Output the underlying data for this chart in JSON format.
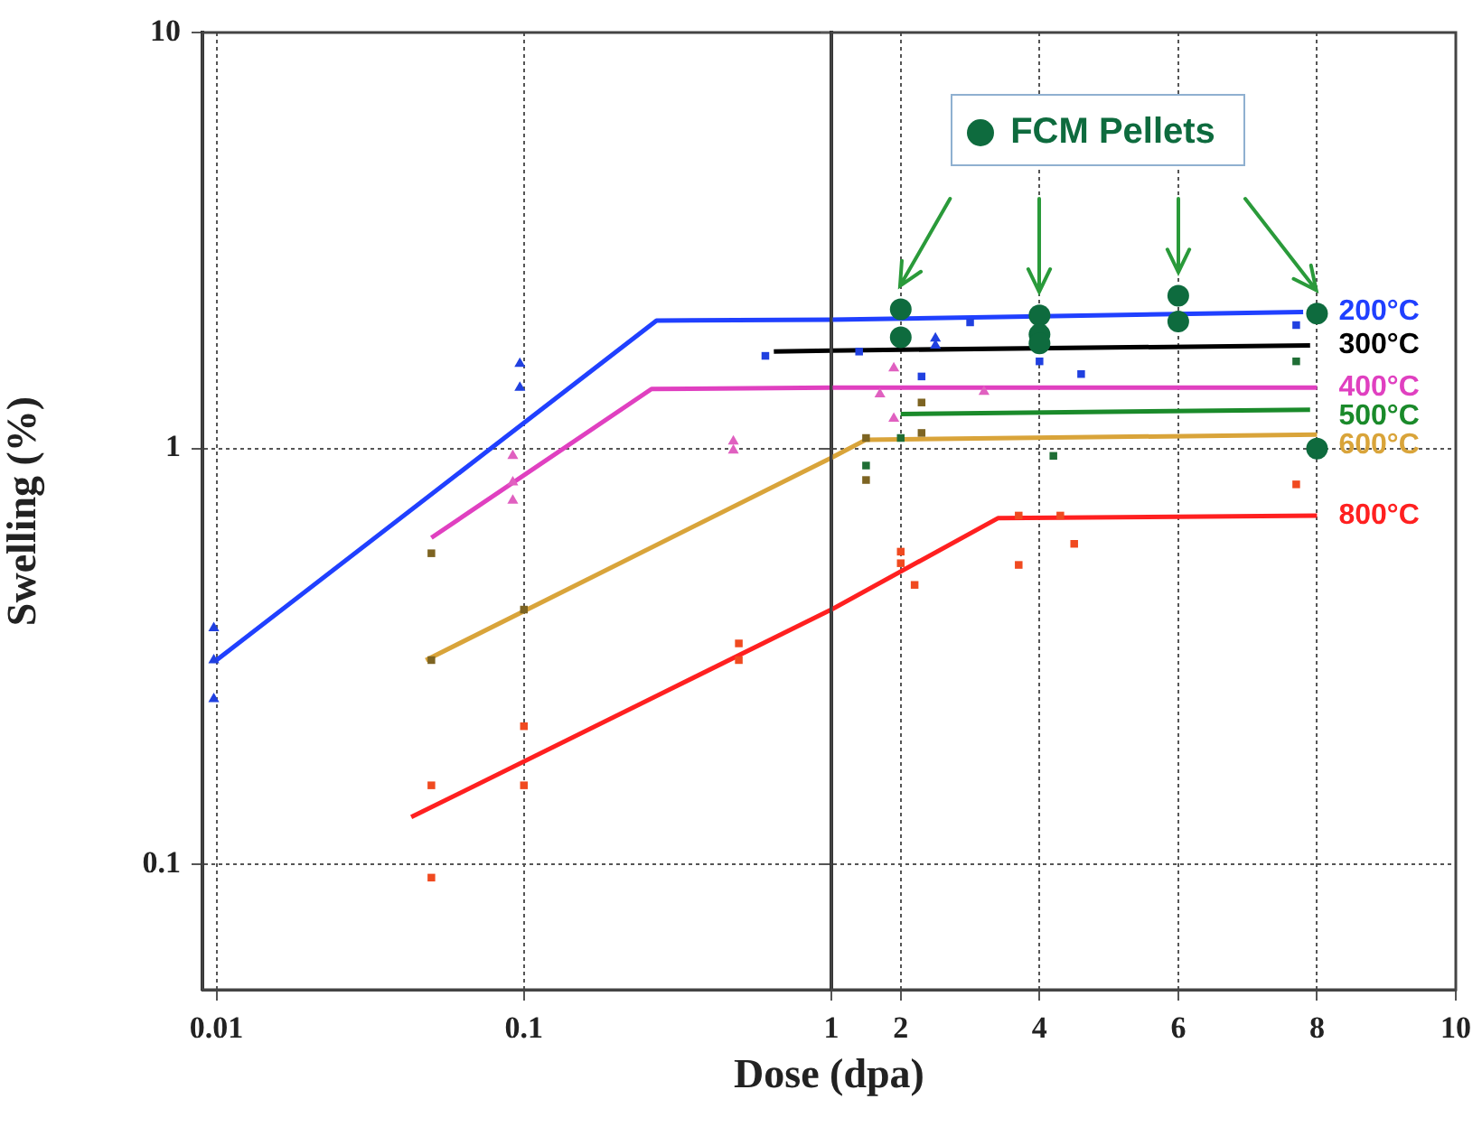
{
  "chart_data": [
    {
      "type": "scatter",
      "xlabel": "Dose (dpa)",
      "ylabel": "Swelling (%)",
      "log": "xy",
      "grid": true,
      "legend": false,
      "xlim": [
        0.009,
        1
      ],
      "xticks": [
        0.01,
        0.1,
        1
      ],
      "ylim": [
        0.05,
        10
      ],
      "yticks": [
        0.1,
        1,
        10
      ],
      "series": [
        {
          "type": "line",
          "color": "#2040ff",
          "x": [
            0.01,
            0.27,
            1
          ],
          "values": [
            0.31,
            2.03,
            2.04
          ]
        },
        {
          "type": "line",
          "color": "#000000",
          "x": [
            0.65,
            1
          ],
          "values": [
            1.71,
            1.72
          ]
        },
        {
          "type": "line",
          "color": "#e040c0",
          "x": [
            0.05,
            0.26,
            1
          ],
          "values": [
            0.61,
            1.39,
            1.4
          ]
        },
        {
          "type": "line",
          "color": "#d9a43a",
          "x": [
            0.048,
            1
          ],
          "values": [
            0.31,
            0.95
          ]
        },
        {
          "type": "line",
          "color": "#ff2020",
          "x": [
            0.043,
            1
          ],
          "values": [
            0.13,
            0.41
          ]
        },
        {
          "type": "scatter",
          "marker": "triangle",
          "color": "#2040e0",
          "x": [
            0.0098,
            0.0098,
            0.0098,
            0.097,
            0.097
          ],
          "values": [
            0.37,
            0.31,
            0.25,
            1.6,
            1.4
          ]
        },
        {
          "type": "scatter",
          "marker": "square",
          "color": "#2040e0",
          "x": [
            0.61
          ],
          "values": [
            1.67
          ]
        },
        {
          "type": "scatter",
          "marker": "triangle",
          "color": "#e060c0",
          "x": [
            0.092,
            0.092,
            0.092,
            0.48,
            0.48
          ],
          "values": [
            0.96,
            0.83,
            0.75,
            1.04,
            0.99
          ]
        },
        {
          "type": "scatter",
          "marker": "square",
          "color": "#7d6422",
          "x": [
            0.05,
            0.05,
            0.1
          ],
          "values": [
            0.56,
            0.31,
            0.41
          ]
        },
        {
          "type": "scatter",
          "marker": "square",
          "color": "#f04a20",
          "x": [
            0.05,
            0.05,
            0.1,
            0.1,
            0.5,
            0.5
          ],
          "values": [
            0.155,
            0.093,
            0.215,
            0.155,
            0.34,
            0.31
          ]
        }
      ]
    },
    {
      "type": "scatter",
      "log": "y",
      "grid": true,
      "legend": "top",
      "tick_labels": "x",
      "xlim": [
        1,
        10
      ],
      "xticks": [
        {
          "value": 1,
          "label": null
        },
        2,
        4,
        6,
        8,
        10
      ],
      "ylim": [
        0.05,
        10
      ],
      "yticks": [
        0.1,
        1,
        10
      ],
      "series": [
        {
          "type": "line",
          "name": "200°C",
          "color": "#2040ff",
          "x": [
            1,
            7.8
          ],
          "values": [
            2.04,
            2.13
          ]
        },
        {
          "type": "line",
          "name": "300°C",
          "color": "#000000",
          "x": [
            1,
            7.9
          ],
          "values": [
            1.72,
            1.77
          ]
        },
        {
          "type": "line",
          "name": "400°C",
          "color": "#e040c0",
          "x": [
            1,
            8
          ],
          "values": [
            1.4,
            1.4
          ]
        },
        {
          "type": "line",
          "name": "500°C",
          "color": "#1a8a2a",
          "x": [
            2,
            7.9
          ],
          "values": [
            1.21,
            1.24
          ]
        },
        {
          "type": "line",
          "name": "600°C",
          "color": "#d9a43a",
          "x": [
            1,
            1.5,
            8
          ],
          "values": [
            0.95,
            1.05,
            1.08
          ]
        },
        {
          "type": "line",
          "name": "800°C",
          "color": "#ff2020",
          "x": [
            1,
            3.4,
            8
          ],
          "values": [
            0.41,
            0.68,
            0.69
          ]
        },
        {
          "type": "scatter",
          "marker": "square",
          "color": "#2040e0",
          "x": [
            1.4,
            3,
            2.3,
            4,
            4.6,
            7.7
          ],
          "values": [
            1.71,
            2.01,
            1.49,
            1.62,
            1.51,
            1.98
          ]
        },
        {
          "type": "scatter",
          "marker": "triangle",
          "color": "#2040e0",
          "x": [
            2.5,
            2.5
          ],
          "values": [
            1.84,
            1.77
          ]
        },
        {
          "type": "scatter",
          "marker": "triangle",
          "color": "#e060c0",
          "x": [
            1.9,
            1.7,
            1.9,
            3.2
          ],
          "values": [
            1.56,
            1.35,
            1.18,
            1.37
          ]
        },
        {
          "type": "scatter",
          "marker": "square",
          "color": "#1f6e35",
          "x": [
            1.5,
            4.2,
            7.7,
            2
          ],
          "values": [
            0.91,
            0.96,
            1.62,
            1.06
          ]
        },
        {
          "type": "scatter",
          "marker": "square",
          "color": "#7d6422",
          "x": [
            1.5,
            2.3,
            2.3,
            1.5
          ],
          "values": [
            0.84,
            1.29,
            1.09,
            1.06
          ]
        },
        {
          "type": "scatter",
          "marker": "square",
          "color": "#f04a20",
          "x": [
            2,
            2,
            2.2,
            3.7,
            3.7,
            4.3,
            4.5,
            7.7
          ],
          "values": [
            0.565,
            0.53,
            0.47,
            0.69,
            0.525,
            0.69,
            0.59,
            0.82
          ]
        },
        {
          "type": "scatter",
          "marker": "circle",
          "name": "FCM Pellets",
          "color": "#0e6b3e",
          "x": [
            2,
            2,
            4,
            4,
            4,
            6,
            6,
            8,
            8
          ],
          "values": [
            2.16,
            1.85,
            2.09,
            1.88,
            1.79,
            2.33,
            2.02,
            2.11,
            1.0
          ]
        }
      ]
    }
  ]
}
